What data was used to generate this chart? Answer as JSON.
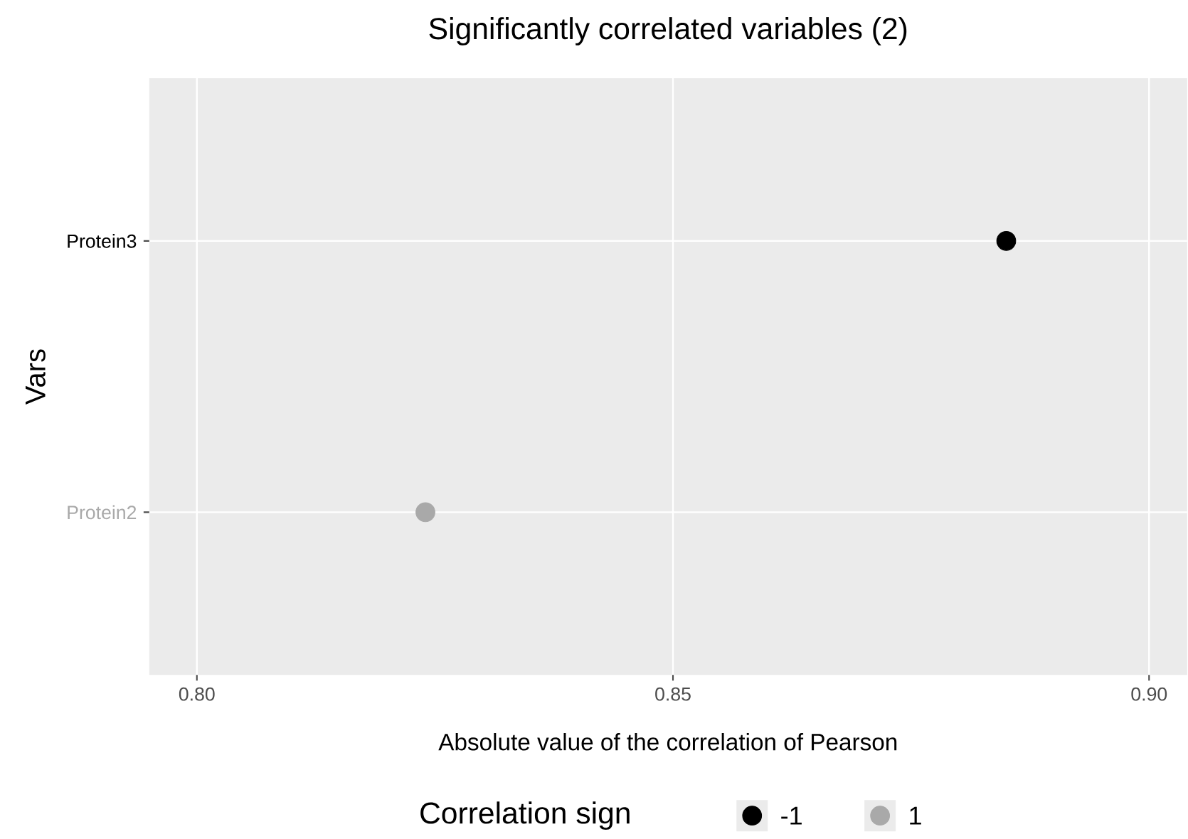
{
  "chart_data": {
    "type": "scatter",
    "title": "Significantly correlated variables (2)",
    "xlabel": "Absolute value of the correlation of Pearson",
    "ylabel": "Vars",
    "legend_title": "Correlation sign",
    "orientation": "horizontal",
    "categories": [
      "Protein3",
      "Protein2"
    ],
    "series": [
      {
        "name": "-1",
        "color": "#000000",
        "values": [
          0.885,
          null
        ]
      },
      {
        "name": "1",
        "color": "#a9a9a9",
        "values": [
          null,
          0.824
        ]
      }
    ],
    "xlim": [
      0.795,
      0.904
    ],
    "xticks": [
      {
        "value": 0.8,
        "label": "0.80"
      },
      {
        "value": 0.85,
        "label": "0.85"
      },
      {
        "value": 0.9,
        "label": "0.90"
      }
    ],
    "grid": true,
    "legend": "bottom",
    "marker": "circle"
  }
}
